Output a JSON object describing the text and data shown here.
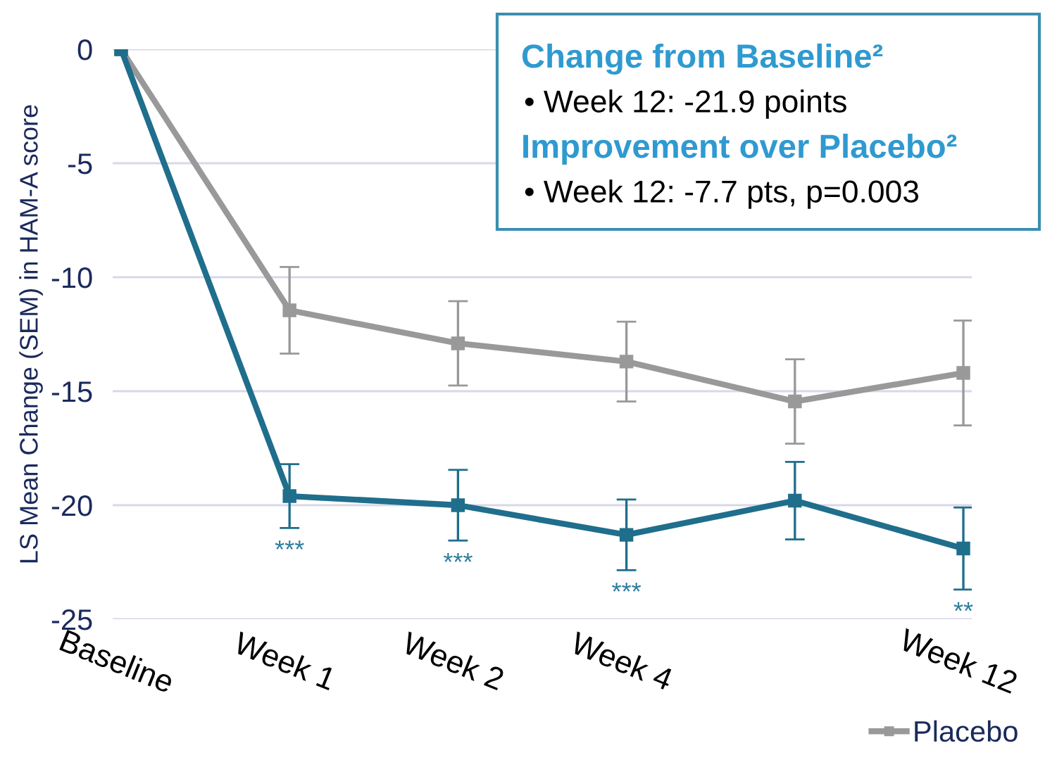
{
  "chart_data": {
    "type": "line",
    "ylabel": "LS Mean Change (SEM) in HAM-A score",
    "categories": [
      "Baseline",
      "Week 1",
      "Week 2",
      "Week 4",
      null,
      "Week 12"
    ],
    "ylim": [
      -25,
      0
    ],
    "yticks": [
      0,
      -5,
      -10,
      -15,
      -20,
      -25
    ],
    "grid": "y",
    "marker": "square",
    "line_style": "solid",
    "legend": "bottom right",
    "series": [
      {
        "color": "#1f6e8c",
        "values": [
          0,
          -19.6,
          -20.0,
          -21.3,
          -19.8,
          -21.9
        ],
        "errors": [
          null,
          1.4,
          1.55,
          1.55,
          1.7,
          1.8
        ],
        "value_labels": [
          null,
          "***",
          "***",
          "***",
          null,
          "**"
        ]
      },
      {
        "name": "Placebo",
        "color": "#999999",
        "values": [
          0,
          -11.45,
          -12.9,
          -13.7,
          -15.45,
          -14.2
        ],
        "errors": [
          null,
          1.9,
          1.85,
          1.75,
          1.85,
          2.3
        ]
      }
    ],
    "annotations": [
      "Change from Baseline²",
      "• Week 12: -21.9 points",
      "Improvement over Placebo²",
      "• Week 12: -7.7 pts, p=0.003"
    ]
  }
}
